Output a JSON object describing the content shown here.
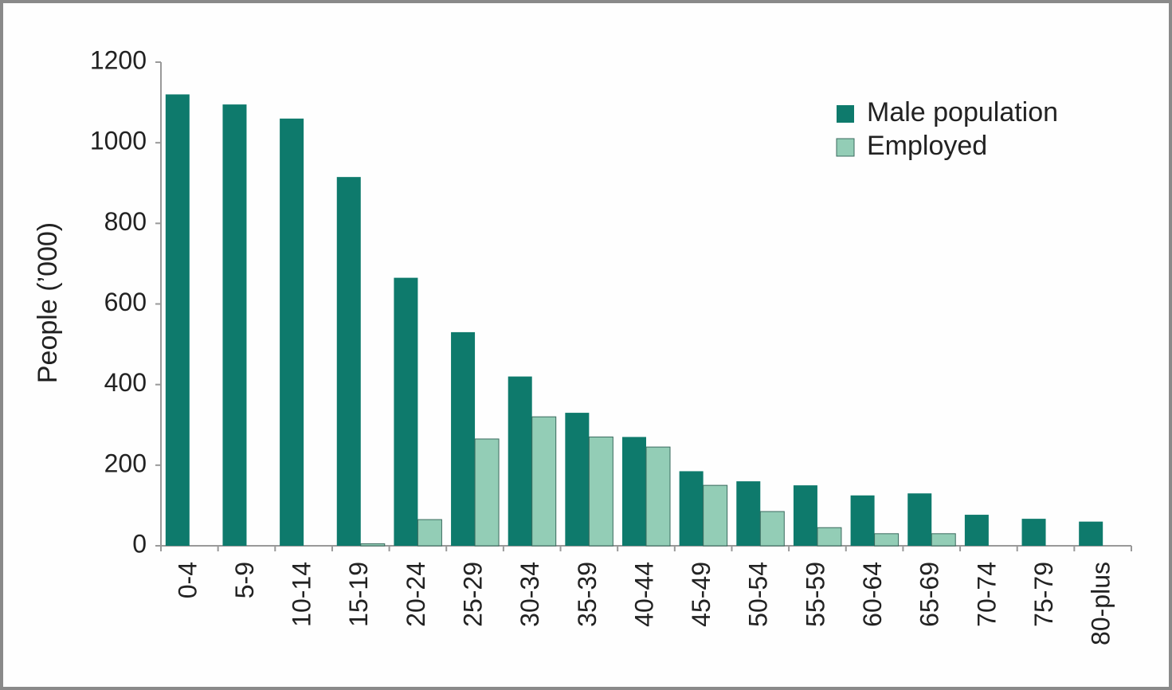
{
  "chart_data": {
    "type": "bar",
    "y_label": "People (’000)",
    "categories": [
      "0-4",
      "5-9",
      "10-14",
      "15-19",
      "20-24",
      "25-29",
      "30-34",
      "35-39",
      "40-44",
      "45-49",
      "50-54",
      "55-59",
      "60-64",
      "65-69",
      "70-74",
      "75-79",
      "80-plus"
    ],
    "series": [
      {
        "name": "Male population",
        "color": "#0e7a6c",
        "values": [
          1120,
          1095,
          1060,
          915,
          665,
          530,
          420,
          330,
          270,
          185,
          160,
          150,
          125,
          130,
          77,
          67,
          60
        ]
      },
      {
        "name": "Employed",
        "color": "#93cdb6",
        "values": [
          0,
          0,
          0,
          5,
          65,
          265,
          320,
          270,
          245,
          150,
          85,
          45,
          30,
          30,
          0,
          0,
          0
        ]
      }
    ],
    "ylim": [
      0,
      1200
    ],
    "yticks": [
      0,
      200,
      400,
      600,
      800,
      1000,
      1200
    ],
    "legend": "upper right"
  }
}
